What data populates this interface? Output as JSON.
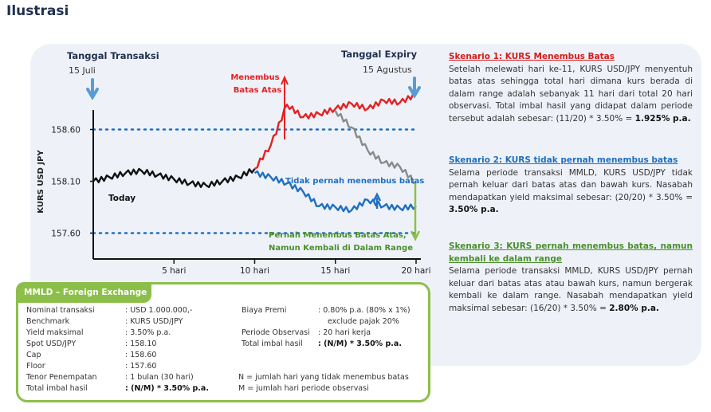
{
  "page_title": "Ilustrasi",
  "chart_data": {
    "type": "line",
    "ylabel": "KURS USD JPY",
    "x_ticks": [
      "5 hari",
      "10 hari",
      "15 hari",
      "20 hari"
    ],
    "x_tick_values": [
      5,
      10,
      15,
      20
    ],
    "xlim": [
      0,
      20
    ],
    "y_ticks": [
      "158.60",
      "158.10",
      "157.60"
    ],
    "y_tick_values": [
      158.6,
      158.1,
      157.6
    ],
    "ylim": [
      157.35,
      158.85
    ],
    "barriers": [
      158.6,
      157.6
    ],
    "series": [
      {
        "key": "history",
        "color": "#111111",
        "x": [
          0,
          1,
          2,
          3,
          4,
          5,
          6,
          7,
          8,
          9,
          10
        ],
        "y": [
          158.1,
          158.14,
          158.18,
          158.2,
          158.16,
          158.12,
          158.08,
          158.06,
          158.1,
          158.14,
          158.22
        ]
      },
      {
        "key": "scenario-1",
        "color": "#e32222",
        "x": [
          10,
          11,
          12,
          13,
          14,
          15,
          16,
          17,
          18,
          19,
          20
        ],
        "y": [
          158.22,
          158.45,
          158.84,
          158.72,
          158.75,
          158.8,
          158.85,
          158.8,
          158.88,
          158.86,
          158.94
        ]
      },
      {
        "key": "scenario-2",
        "color": "#1f6fc0",
        "x": [
          10,
          11,
          12,
          13,
          14,
          15,
          16,
          17,
          18,
          19,
          20
        ],
        "y": [
          158.18,
          158.14,
          158.08,
          158.0,
          157.86,
          157.85,
          157.82,
          157.92,
          157.86,
          157.84,
          157.86
        ]
      },
      {
        "key": "scenario-3",
        "color": "#8a8a8a",
        "x": [
          15,
          16,
          17,
          18,
          19,
          20
        ],
        "y": [
          158.78,
          158.62,
          158.4,
          158.28,
          158.24,
          158.08
        ]
      }
    ],
    "annotations": {
      "start_label": "Tanggal Transaksi",
      "start_date": "15 Juli",
      "end_label": "Tanggal Expiry",
      "end_date": "15 Agustus",
      "today": "Today",
      "breach_up_line1": "Menembus",
      "breach_up_line2": "Batas Atas",
      "no_breach": "Tidak pernah menembus batas",
      "return_line1": "Pernah Menembus Batas Atas,",
      "return_line2": "Namun Kembali di Dalam Range"
    }
  },
  "scenarios": [
    {
      "title": "Skenario 1: KURS Menembus Batas",
      "body": "Setelah melewati hari ke-11, KURS USD/JPY menyentuh batas atas sehingga total hari dimana kurs berada di dalam range adalah sebanyak 11 hari dari total 20 hari observasi. Total imbal hasil yang didapat dalam periode tersebut adalah sebesar: (11/20) * 3.50% = ",
      "result": "1.925% p.a."
    },
    {
      "title": "Skenario 2: KURS tidak pernah menembus batas",
      "body": "Selama periode transaksi MMLD, KURS USD/JPY tidak pernah keluar dari batas atas dan bawah kurs. Nasabah mendapatkan yield maksimal sebesar: (20/20) * 3.50% = ",
      "result": "3.50% p.a."
    },
    {
      "title": "Skenario 3: KURS pernah menembus batas, namun kembali ke dalam range",
      "body": "Selama periode transaksi MMLD, KURS USD/JPY pernah keluar dari batas atas atau bawah kurs, namun bergerak kembali ke dalam range. Nasabah mendapatkan yield maksimal sebesar: (16/20) * 3.50% = ",
      "result": "2.80% p.a."
    }
  ],
  "box": {
    "title": "MMLD – Foreign Exchange",
    "left": [
      {
        "label": "Nominal transaksi",
        "value": ": USD 1.000.000,-"
      },
      {
        "label": "Benchmark",
        "value": ": KURS USD/JPY"
      },
      {
        "label": "Yield maksimal",
        "value": ": 3.50% p.a."
      },
      {
        "label": "Spot USD/JPY",
        "value": ": 158.10"
      },
      {
        "label": "Cap",
        "value": ": 158.60"
      },
      {
        "label": "Floor",
        "value": ": 157.60"
      },
      {
        "label": "Tenor Penempatan",
        "value": ": 1 bulan (30 hari)"
      },
      {
        "label": "Total imbal hasil",
        "value": ": (N/M) * 3.50% p.a."
      }
    ],
    "right": [
      {
        "label": "Biaya Premi",
        "value": ": 0.80% p.a. (80% x 1%)"
      },
      {
        "label": "",
        "value": "exclude pajak 20%"
      },
      {
        "label": "Periode Observasi",
        "value": ": 20 hari kerja"
      },
      {
        "label": "Total imbal hasil",
        "value": ": (N/M) * 3.50% p.a."
      }
    ],
    "notes": [
      "N  = jumlah hari yang tidak menembus batas",
      "M = jumlah hari periode observasi"
    ]
  }
}
